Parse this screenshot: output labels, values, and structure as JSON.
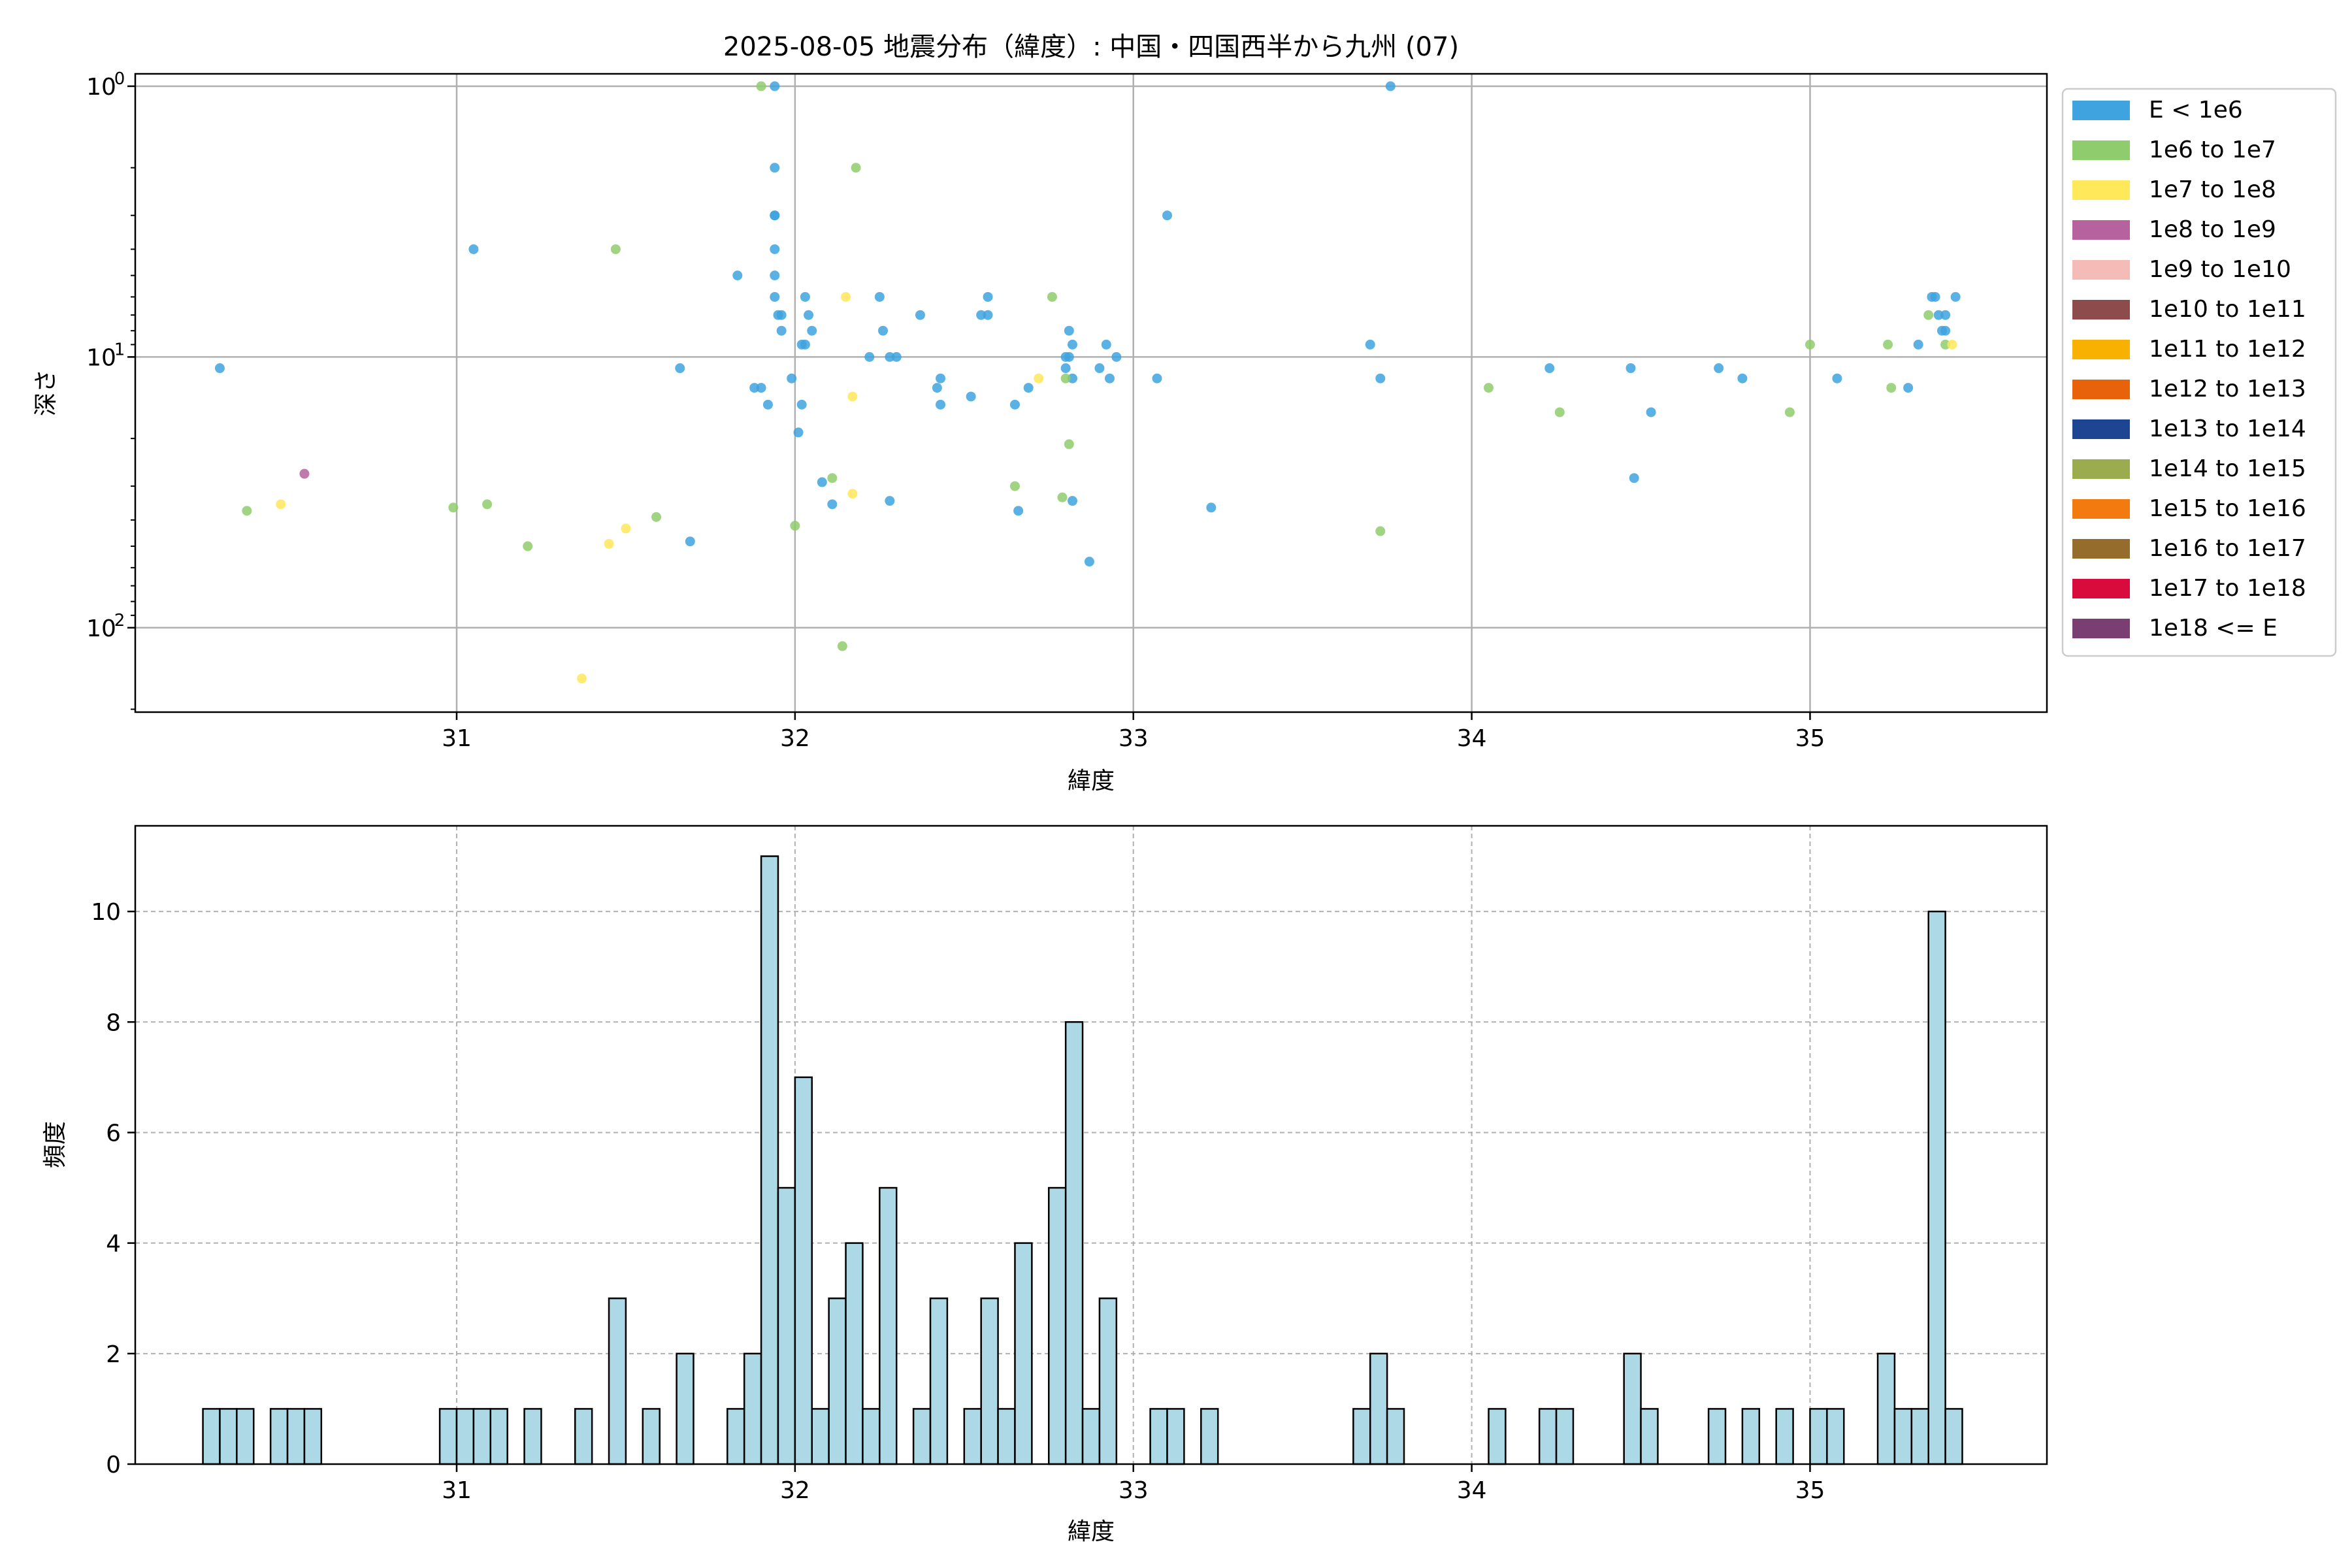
{
  "chart_data": [
    {
      "type": "scatter",
      "title": "2025-08-05 地震分布（緯度）: 中国・四国西半から九州 (07)",
      "xlabel": "緯度",
      "ylabel": "深さ",
      "xlim": [
        30.05,
        35.7
      ],
      "ylim": [
        205,
        0.9
      ],
      "yscale": "log",
      "y_inverted": true,
      "xticks": [
        31,
        32,
        33,
        34,
        35
      ],
      "yticks": [
        {
          "value": 1,
          "base": "10",
          "exp": "0"
        },
        {
          "value": 10,
          "base": "10",
          "exp": "1"
        },
        {
          "value": 100,
          "base": "10",
          "exp": "2"
        }
      ],
      "grid": true,
      "legend_position": "outside-right",
      "legend": [
        {
          "label": "E < 1e6",
          "color": "#3ea3de"
        },
        {
          "label": "1e6 to 1e7",
          "color": "#8fcc6d"
        },
        {
          "label": "1e7 to 1e8",
          "color": "#ffe85a"
        },
        {
          "label": "1e8 to 1e9",
          "color": "#b5629e"
        },
        {
          "label": "1e9 to 1e10",
          "color": "#f5bcb7"
        },
        {
          "label": "1e10 to 1e11",
          "color": "#8d4b4b"
        },
        {
          "label": "1e11 to 1e12",
          "color": "#f8b100"
        },
        {
          "label": "1e12 to 1e13",
          "color": "#e8620a"
        },
        {
          "label": "1e13 to 1e14",
          "color": "#1d4591"
        },
        {
          "label": "1e14 to 1e15",
          "color": "#9aac4d"
        },
        {
          "label": "1e15 to 1e16",
          "color": "#f27a0e"
        },
        {
          "label": "1e16 to 1e17",
          "color": "#956c2c"
        },
        {
          "label": "1e17 to 1e18",
          "color": "#d90b3c"
        },
        {
          "label": "1e18 <= E",
          "color": "#7a3e72"
        }
      ],
      "series": [
        {
          "name": "E < 1e6",
          "color": "#3ea3de",
          "points": [
            [
              30.3,
              11
            ],
            [
              31.05,
              4
            ],
            [
              31.66,
              11
            ],
            [
              31.69,
              48
            ],
            [
              31.83,
              5
            ],
            [
              31.88,
              13
            ],
            [
              31.9,
              13
            ],
            [
              31.92,
              15
            ],
            [
              31.94,
              1
            ],
            [
              31.94,
              2
            ],
            [
              31.94,
              3
            ],
            [
              31.94,
              3
            ],
            [
              31.94,
              4
            ],
            [
              31.94,
              5
            ],
            [
              31.94,
              6
            ],
            [
              31.95,
              7
            ],
            [
              31.96,
              7
            ],
            [
              31.96,
              8
            ],
            [
              31.99,
              12
            ],
            [
              32.01,
              19
            ],
            [
              32.02,
              15
            ],
            [
              32.02,
              9
            ],
            [
              32.03,
              9
            ],
            [
              32.03,
              6
            ],
            [
              32.04,
              7
            ],
            [
              32.05,
              8
            ],
            [
              32.08,
              29
            ],
            [
              32.11,
              35
            ],
            [
              32.22,
              10
            ],
            [
              32.25,
              6
            ],
            [
              32.26,
              8
            ],
            [
              32.28,
              10
            ],
            [
              32.28,
              34
            ],
            [
              32.3,
              10
            ],
            [
              32.37,
              7
            ],
            [
              32.42,
              13
            ],
            [
              32.43,
              12
            ],
            [
              32.43,
              15
            ],
            [
              32.52,
              14
            ],
            [
              32.55,
              7
            ],
            [
              32.57,
              7
            ],
            [
              32.57,
              6
            ],
            [
              32.65,
              15
            ],
            [
              32.66,
              37
            ],
            [
              32.69,
              13
            ],
            [
              32.8,
              11
            ],
            [
              32.8,
              10
            ],
            [
              32.81,
              8
            ],
            [
              32.81,
              10
            ],
            [
              32.82,
              12
            ],
            [
              32.82,
              9
            ],
            [
              32.82,
              34
            ],
            [
              32.87,
              57
            ],
            [
              32.9,
              11
            ],
            [
              32.92,
              9
            ],
            [
              32.93,
              12
            ],
            [
              32.95,
              10
            ],
            [
              33.07,
              12
            ],
            [
              33.1,
              3
            ],
            [
              33.23,
              36
            ],
            [
              33.7,
              9
            ],
            [
              33.73,
              12
            ],
            [
              33.76,
              1
            ],
            [
              34.23,
              11
            ],
            [
              34.47,
              11
            ],
            [
              34.48,
              28
            ],
            [
              34.53,
              16
            ],
            [
              34.73,
              11
            ],
            [
              34.8,
              12
            ],
            [
              35.08,
              12
            ],
            [
              35.29,
              13
            ],
            [
              35.32,
              9
            ],
            [
              35.36,
              6
            ],
            [
              35.37,
              6
            ],
            [
              35.38,
              7
            ],
            [
              35.39,
              8
            ],
            [
              35.4,
              7
            ],
            [
              35.4,
              8
            ],
            [
              35.43,
              6
            ]
          ]
        },
        {
          "name": "1e6 to 1e7",
          "color": "#8fcc6d",
          "points": [
            [
              30.38,
              37
            ],
            [
              30.99,
              36
            ],
            [
              31.09,
              35
            ],
            [
              31.21,
              50
            ],
            [
              31.47,
              4
            ],
            [
              31.59,
              39
            ],
            [
              31.9,
              1
            ],
            [
              32.0,
              42
            ],
            [
              32.11,
              28
            ],
            [
              32.14,
              117
            ],
            [
              32.18,
              2
            ],
            [
              32.65,
              30
            ],
            [
              32.76,
              6
            ],
            [
              32.79,
              33
            ],
            [
              32.81,
              21
            ],
            [
              32.8,
              12
            ],
            [
              33.73,
              44
            ],
            [
              34.05,
              13
            ],
            [
              34.26,
              16
            ],
            [
              34.94,
              16
            ],
            [
              35.0,
              9
            ],
            [
              35.23,
              9
            ],
            [
              35.24,
              13
            ],
            [
              35.35,
              7
            ],
            [
              35.4,
              9
            ]
          ]
        },
        {
          "name": "1e7 to 1e8",
          "color": "#ffe85a",
          "points": [
            [
              30.48,
              35
            ],
            [
              31.37,
              154
            ],
            [
              31.45,
              49
            ],
            [
              31.5,
              43
            ],
            [
              32.15,
              6
            ],
            [
              32.17,
              14
            ],
            [
              32.17,
              32
            ],
            [
              32.72,
              12
            ],
            [
              35.42,
              9
            ]
          ]
        },
        {
          "name": "1e8 to 1e9",
          "color": "#b5629e",
          "points": [
            [
              30.55,
              27
            ]
          ]
        }
      ]
    },
    {
      "type": "bar",
      "subtype": "histogram",
      "xlabel": "緯度",
      "ylabel": "頻度",
      "xlim": [
        30.05,
        35.7
      ],
      "ylim": [
        0,
        11.55
      ],
      "xticks": [
        31,
        32,
        33,
        34,
        35
      ],
      "yticks": [
        0,
        2,
        4,
        6,
        8,
        10
      ],
      "grid": true,
      "bar_color": "#add8e6",
      "edge_color": "#000000",
      "bin_width": 0.05,
      "bins": [
        [
          30.25,
          1
        ],
        [
          30.3,
          1
        ],
        [
          30.35,
          1
        ],
        [
          30.45,
          1
        ],
        [
          30.5,
          1
        ],
        [
          30.55,
          1
        ],
        [
          30.95,
          1
        ],
        [
          31.0,
          1
        ],
        [
          31.05,
          1
        ],
        [
          31.1,
          1
        ],
        [
          31.2,
          1
        ],
        [
          31.35,
          1
        ],
        [
          31.45,
          3
        ],
        [
          31.55,
          1
        ],
        [
          31.65,
          2
        ],
        [
          31.8,
          1
        ],
        [
          31.85,
          2
        ],
        [
          31.9,
          11
        ],
        [
          31.95,
          5
        ],
        [
          32.0,
          7
        ],
        [
          32.05,
          1
        ],
        [
          32.1,
          3
        ],
        [
          32.15,
          4
        ],
        [
          32.2,
          1
        ],
        [
          32.25,
          5
        ],
        [
          32.35,
          1
        ],
        [
          32.4,
          3
        ],
        [
          32.5,
          1
        ],
        [
          32.55,
          3
        ],
        [
          32.6,
          1
        ],
        [
          32.65,
          4
        ],
        [
          32.75,
          5
        ],
        [
          32.8,
          8
        ],
        [
          32.85,
          1
        ],
        [
          32.9,
          3
        ],
        [
          33.05,
          1
        ],
        [
          33.1,
          1
        ],
        [
          33.2,
          1
        ],
        [
          33.65,
          1
        ],
        [
          33.7,
          2
        ],
        [
          33.75,
          1
        ],
        [
          34.05,
          1
        ],
        [
          34.2,
          1
        ],
        [
          34.25,
          1
        ],
        [
          34.45,
          2
        ],
        [
          34.5,
          1
        ],
        [
          34.7,
          1
        ],
        [
          34.8,
          1
        ],
        [
          34.9,
          1
        ],
        [
          35.0,
          1
        ],
        [
          35.05,
          1
        ],
        [
          35.2,
          2
        ],
        [
          35.25,
          1
        ],
        [
          35.3,
          1
        ],
        [
          35.35,
          10
        ],
        [
          35.4,
          1
        ]
      ]
    }
  ]
}
